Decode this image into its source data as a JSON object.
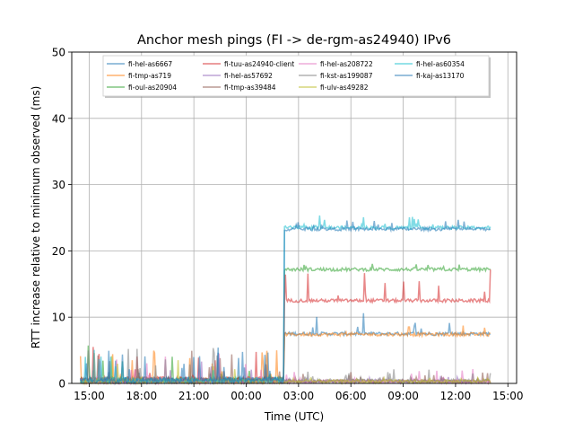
{
  "chart_data": {
    "type": "line",
    "title": "Anchor mesh pings (FI -> de-rgm-as24940) IPv6",
    "xlabel": "Time (UTC)",
    "ylabel": "RTT increase relative to minimum observed (ms)",
    "xlim": [
      "14:00",
      "15:30 (+1 day)"
    ],
    "ylim": [
      0,
      50
    ],
    "x_ticks": [
      "15:00",
      "18:00",
      "21:00",
      "00:00",
      "03:00",
      "06:00",
      "09:00",
      "12:00",
      "15:00"
    ],
    "y_ticks": [
      0,
      10,
      20,
      30,
      40,
      50
    ],
    "grid": true,
    "legend_position": "top-center",
    "legend_columns": 4,
    "step_time": "02:10",
    "series": [
      {
        "name": "fi-hel-as6667",
        "color": "#1f77b4",
        "baseline_before": 0.5,
        "level_after": 7.5,
        "spike_max": 10.5
      },
      {
        "name": "fi-tmp-as719",
        "color": "#ff7f0e",
        "baseline_before": 0.5,
        "level_after": 7.4,
        "spike_max": 9.0
      },
      {
        "name": "fi-oul-as20904",
        "color": "#2ca02c",
        "baseline_before": 0.5,
        "level_after": 17.2,
        "spike_max": 18.0
      },
      {
        "name": "fi-tuu-as24940-client",
        "color": "#d62728",
        "baseline_before": 0.6,
        "level_after": 12.5,
        "spike_max": 17.0
      },
      {
        "name": "fi-hel-as57692",
        "color": "#9467bd",
        "baseline_before": 0.3,
        "level_after": 0.3,
        "spike_max": 1.0
      },
      {
        "name": "fi-tmp-as39484",
        "color": "#8c564b",
        "baseline_before": 0.4,
        "level_after": 0.3,
        "spike_max": 1.5
      },
      {
        "name": "fi-hel-as208722",
        "color": "#e377c2",
        "baseline_before": 0.3,
        "level_after": 0.3,
        "spike_max": 2.0
      },
      {
        "name": "fi-kst-as199087",
        "color": "#7f7f7f",
        "baseline_before": 0.4,
        "level_after": 0.4,
        "spike_max": 2.5
      },
      {
        "name": "fi-ulv-as49282",
        "color": "#bcbd22",
        "baseline_before": 0.3,
        "level_after": 0.3,
        "spike_max": 1.0
      },
      {
        "name": "fi-hel-as60354",
        "color": "#17becf",
        "baseline_before": 0.5,
        "level_after": 23.5,
        "spike_max": 25.3
      },
      {
        "name": "fi-kaj-as13170",
        "color": "#1f77b4",
        "baseline_before": 0.5,
        "level_after": 23.3,
        "spike_max": 24.5
      }
    ]
  }
}
